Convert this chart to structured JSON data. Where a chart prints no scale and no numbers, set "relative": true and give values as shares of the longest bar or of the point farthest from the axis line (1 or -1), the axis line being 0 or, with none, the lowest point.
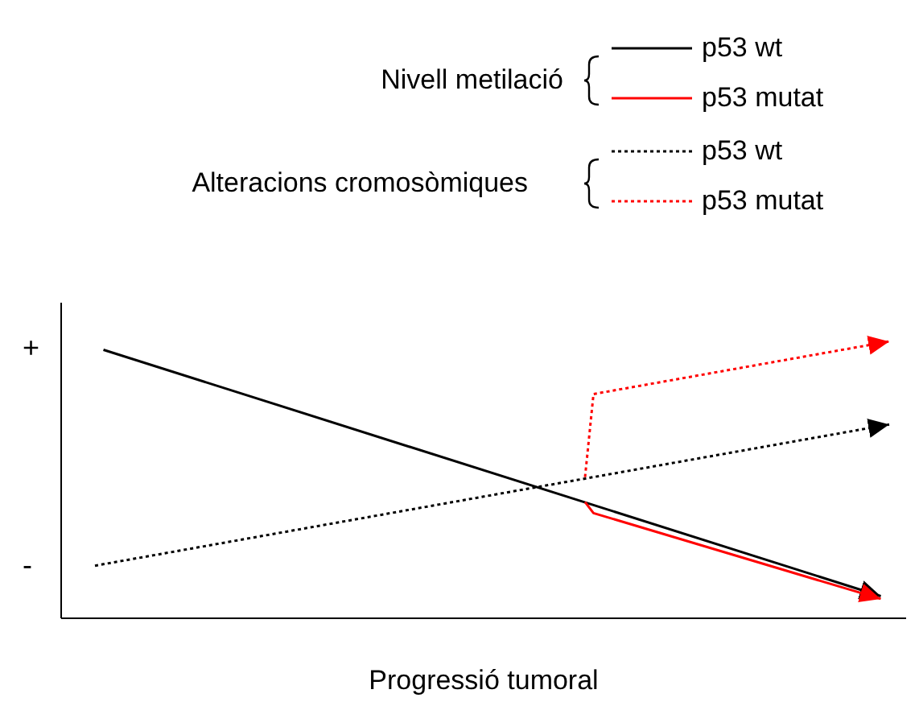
{
  "chart_data": {
    "type": "line",
    "xlabel": "Progressió tumoral",
    "annotations": [
      "Nivell metilació",
      "Alteracions cromosòmiques",
      "+",
      "-"
    ],
    "categories": [
      null,
      null,
      null,
      null,
      null,
      null,
      null,
      null,
      null,
      null,
      null,
      null,
      null,
      null,
      null,
      null,
      null,
      null,
      null,
      null,
      null,
      null,
      null,
      null,
      null,
      null,
      null,
      null,
      null,
      null,
      null,
      null,
      null,
      null,
      null,
      null,
      null,
      null,
      null,
      null,
      null,
      null,
      null,
      null,
      null,
      null,
      null,
      null,
      null,
      null,
      null,
      null,
      null,
      null,
      null,
      null,
      null,
      null,
      null,
      null,
      null,
      null,
      null,
      null,
      null,
      null,
      null,
      null,
      null,
      null,
      null,
      null,
      null,
      null,
      null,
      null,
      null,
      null,
      null,
      null,
      null,
      null,
      null,
      null,
      null,
      null,
      null,
      null,
      null,
      null,
      null,
      null,
      null,
      null,
      null,
      null,
      null,
      null,
      null,
      null,
      null
    ],
    "relative": true,
    "grid": false,
    "legend": "top",
    "marker": "none",
    "series": [
      {
        "name": "p53 wt",
        "color": "#000000",
        "line_style": "solid",
        "values": [
          null,
          null,
          null,
          null,
          null,
          0.97,
          null,
          null,
          null,
          null,
          null,
          null,
          null,
          null,
          null,
          null,
          null,
          null,
          null,
          null,
          null,
          null,
          null,
          null,
          null,
          null,
          null,
          null,
          null,
          null,
          null,
          null,
          null,
          null,
          null,
          null,
          null,
          null,
          null,
          null,
          null,
          null,
          null,
          null,
          null,
          null,
          null,
          null,
          null,
          null,
          null,
          null,
          null,
          null,
          null,
          null,
          null,
          null,
          null,
          null,
          null,
          null,
          null,
          null,
          null,
          null,
          null,
          null,
          null,
          null,
          null,
          null,
          null,
          null,
          null,
          null,
          null,
          null,
          null,
          null,
          null,
          null,
          null,
          null,
          null,
          null,
          null,
          null,
          null,
          null,
          null,
          null,
          null,
          null,
          null,
          null,
          null,
          0.08,
          null,
          null,
          null
        ]
      },
      {
        "name": "p53 mutat",
        "color": "#ff0000",
        "line_style": "solid",
        "values": [
          null,
          null,
          null,
          null,
          null,
          null,
          null,
          null,
          null,
          null,
          null,
          null,
          null,
          null,
          null,
          null,
          null,
          null,
          null,
          null,
          null,
          null,
          null,
          null,
          null,
          null,
          null,
          null,
          null,
          null,
          null,
          null,
          null,
          null,
          null,
          null,
          null,
          null,
          null,
          null,
          null,
          null,
          null,
          null,
          null,
          null,
          null,
          null,
          null,
          null,
          null,
          null,
          null,
          null,
          null,
          null,
          null,
          null,
          null,
          null,
          null,
          null,
          0.42,
          0.38,
          null,
          null,
          null,
          null,
          null,
          null,
          null,
          null,
          null,
          null,
          null,
          null,
          null,
          null,
          null,
          null,
          null,
          null,
          null,
          null,
          null,
          null,
          null,
          null,
          null,
          null,
          null,
          null,
          null,
          null,
          null,
          null,
          null,
          0.07,
          null,
          null,
          null
        ]
      },
      {
        "name": "p53 wt",
        "color": "#000000",
        "line_style": "dotted",
        "values": [
          null,
          null,
          null,
          null,
          0.19,
          null,
          null,
          null,
          null,
          null,
          null,
          null,
          null,
          null,
          null,
          null,
          null,
          null,
          null,
          null,
          null,
          null,
          null,
          null,
          null,
          null,
          null,
          null,
          null,
          null,
          null,
          null,
          null,
          null,
          null,
          null,
          null,
          null,
          null,
          null,
          null,
          null,
          null,
          null,
          null,
          null,
          null,
          null,
          null,
          null,
          null,
          null,
          null,
          null,
          null,
          null,
          null,
          null,
          null,
          null,
          null,
          null,
          null,
          null,
          null,
          null,
          null,
          null,
          null,
          null,
          null,
          null,
          null,
          null,
          null,
          null,
          null,
          null,
          null,
          null,
          null,
          null,
          null,
          null,
          null,
          null,
          null,
          null,
          null,
          null,
          null,
          null,
          null,
          null,
          null,
          null,
          null,
          null,
          0.7,
          null,
          null
        ]
      },
      {
        "name": "p53 mutat",
        "color": "#ff0000",
        "line_style": "dotted",
        "values": [
          null,
          null,
          null,
          null,
          null,
          null,
          null,
          null,
          null,
          null,
          null,
          null,
          null,
          null,
          null,
          null,
          null,
          null,
          null,
          null,
          null,
          null,
          null,
          null,
          null,
          null,
          null,
          null,
          null,
          null,
          null,
          null,
          null,
          null,
          null,
          null,
          null,
          null,
          null,
          null,
          null,
          null,
          null,
          null,
          null,
          null,
          null,
          null,
          null,
          null,
          null,
          null,
          null,
          null,
          null,
          null,
          null,
          null,
          null,
          null,
          null,
          null,
          0.51,
          0.81,
          null,
          null,
          null,
          null,
          null,
          null,
          null,
          null,
          null,
          null,
          null,
          null,
          null,
          null,
          null,
          null,
          null,
          null,
          null,
          null,
          null,
          null,
          null,
          null,
          null,
          null,
          null,
          null,
          null,
          null,
          null,
          null,
          null,
          null,
          1.0,
          null,
          null
        ]
      }
    ]
  }
}
